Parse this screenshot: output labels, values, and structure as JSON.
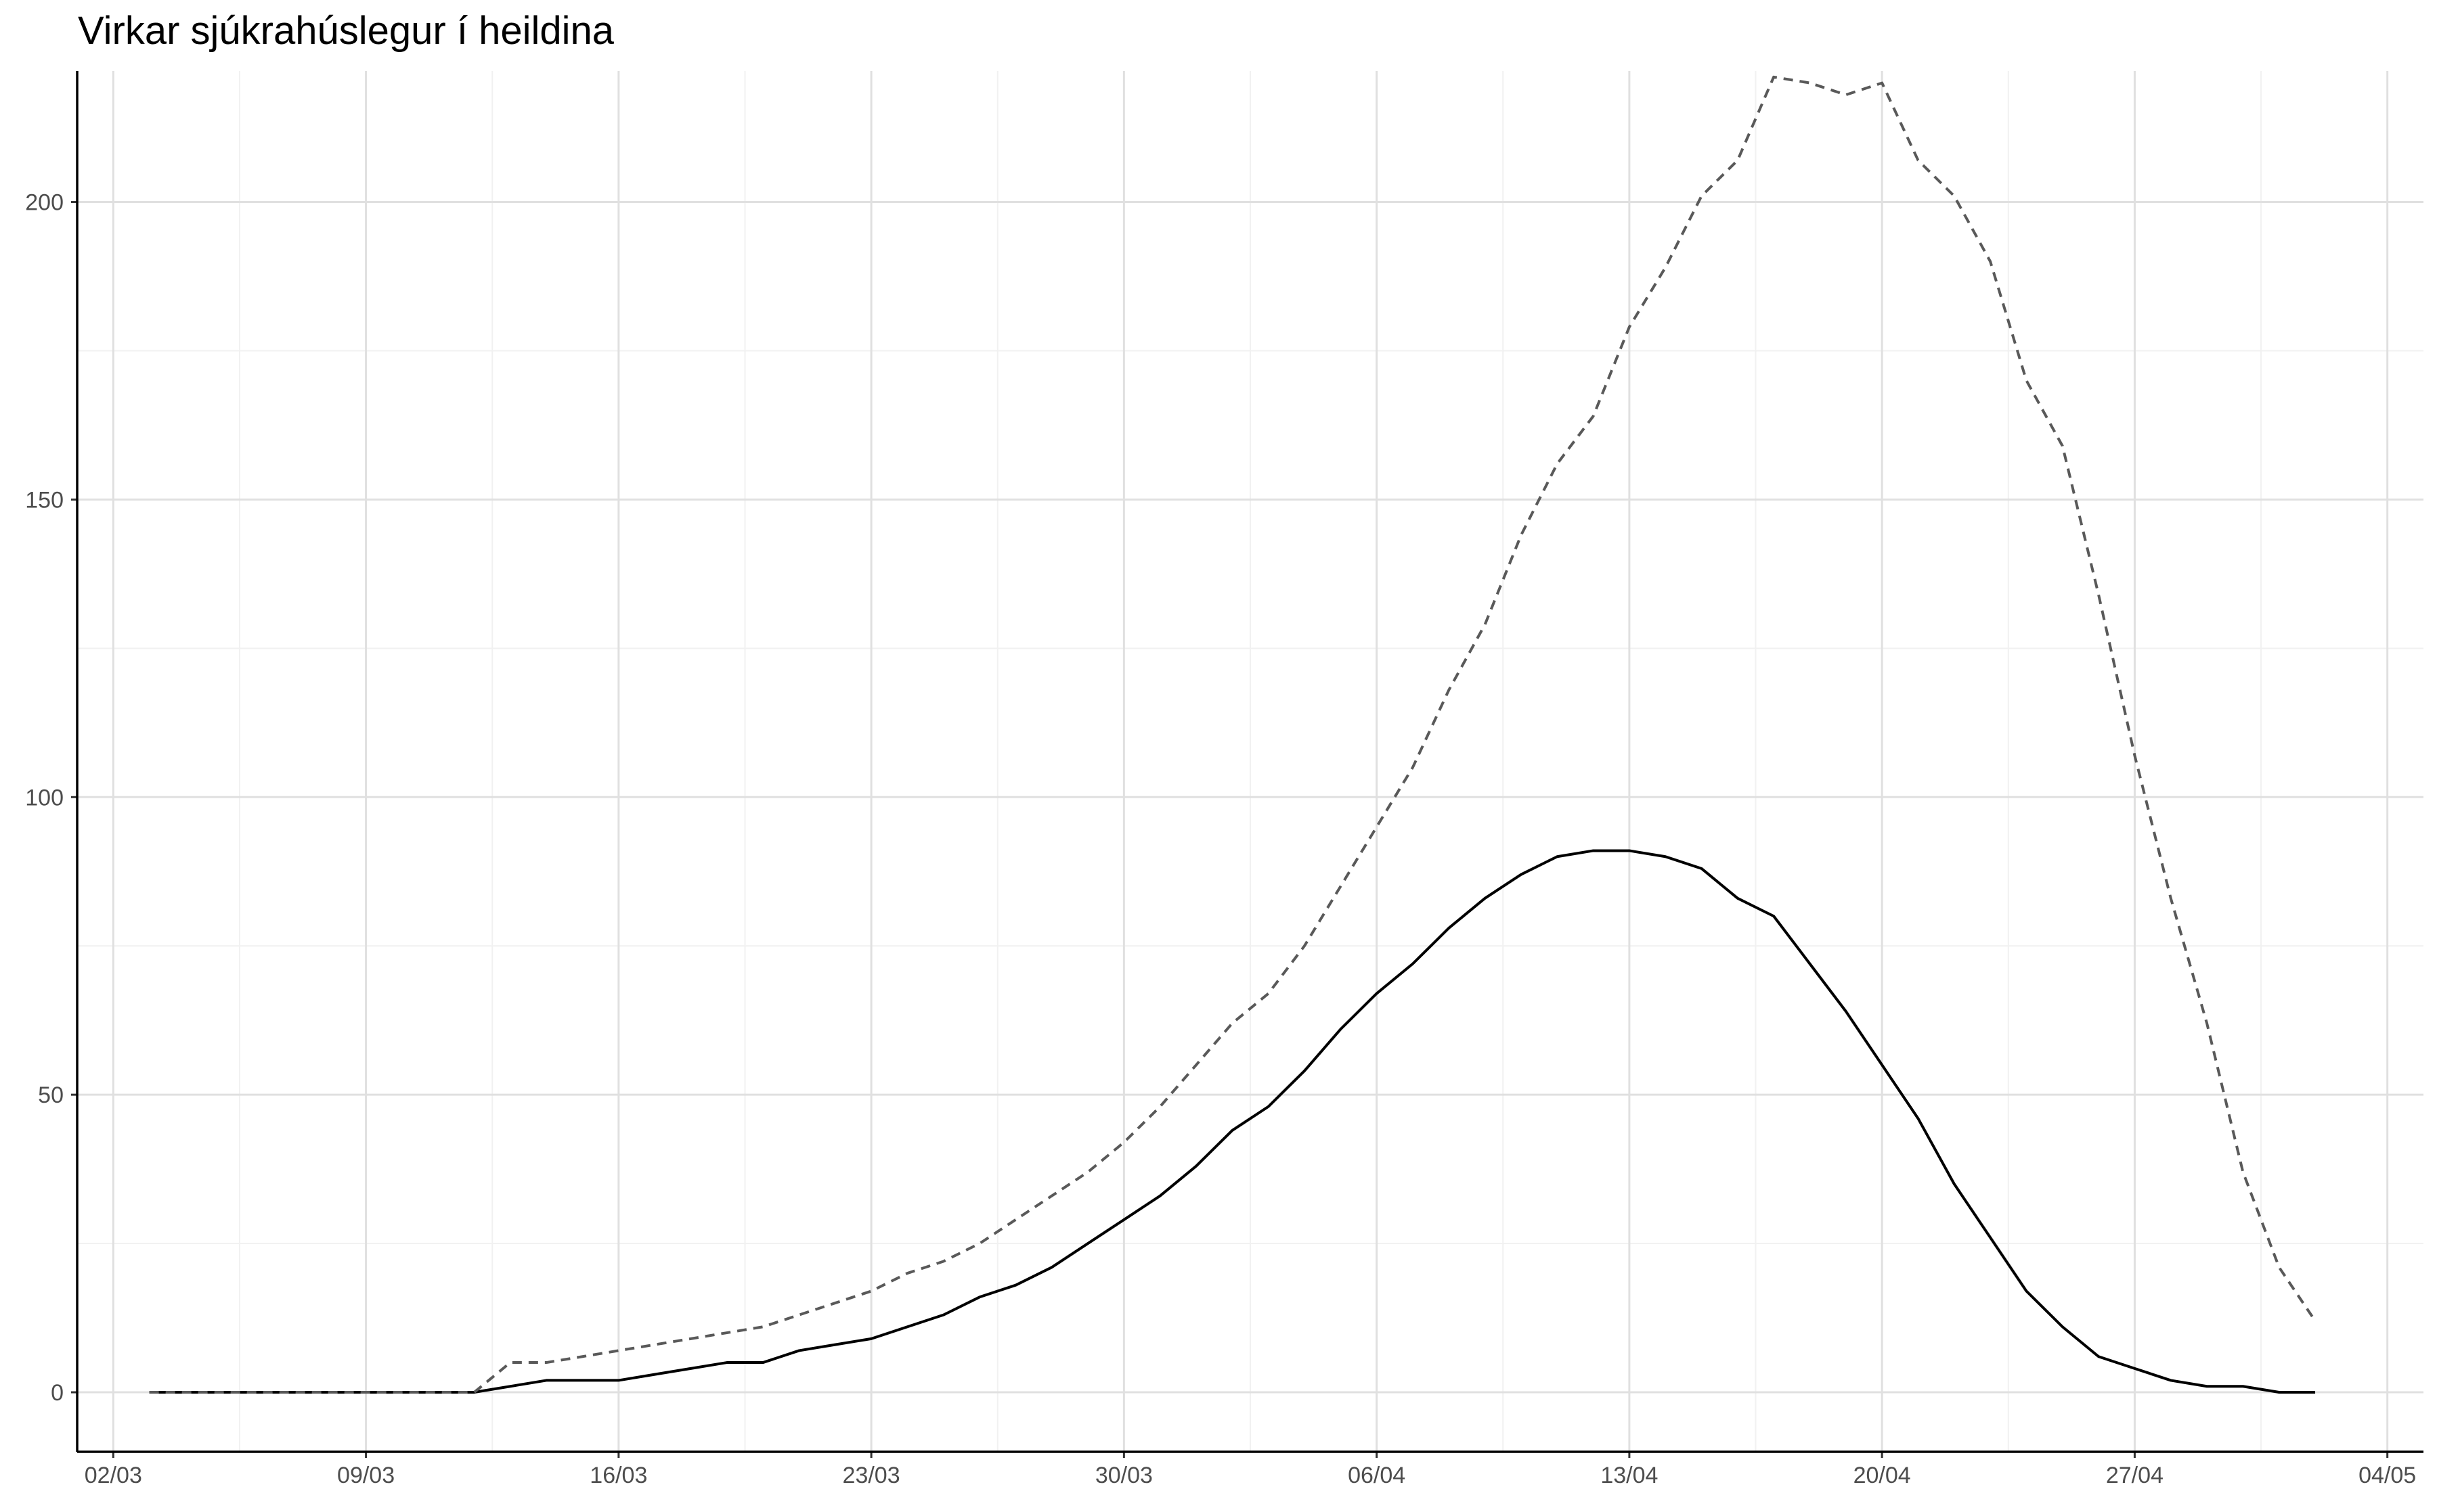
{
  "chart_data": {
    "type": "line",
    "title": "Virkar sjúkrahúslegur í heildina",
    "xlabel": "",
    "ylabel": "",
    "x_start": "2020-03-03",
    "x_end": "2020-05-02",
    "xlim": [
      "2020-03-01",
      "2020-05-05"
    ],
    "ylim": [
      -10,
      222
    ],
    "y_ticks": [
      0,
      50,
      100,
      150,
      200
    ],
    "x_ticks": [
      {
        "date": "2020-03-02",
        "label": "02/03"
      },
      {
        "date": "2020-03-09",
        "label": "09/03"
      },
      {
        "date": "2020-03-16",
        "label": "16/03"
      },
      {
        "date": "2020-03-23",
        "label": "23/03"
      },
      {
        "date": "2020-03-30",
        "label": "30/03"
      },
      {
        "date": "2020-04-06",
        "label": "06/04"
      },
      {
        "date": "2020-04-13",
        "label": "13/04"
      },
      {
        "date": "2020-04-20",
        "label": "20/04"
      },
      {
        "date": "2020-04-27",
        "label": "27/04"
      },
      {
        "date": "2020-05-04",
        "label": "04/05"
      }
    ],
    "grid": true,
    "legend": "none",
    "series": [
      {
        "style": "solid",
        "color": "#000000",
        "values": [
          0,
          0,
          0,
          0,
          0,
          0,
          0,
          0,
          0,
          0,
          1,
          2,
          2,
          2,
          3,
          4,
          5,
          5,
          7,
          8,
          9,
          11,
          13,
          16,
          18,
          21,
          25,
          29,
          33,
          38,
          44,
          48,
          54,
          61,
          67,
          72,
          78,
          83,
          87,
          90,
          91,
          91,
          90,
          88,
          83,
          80,
          72,
          64,
          55,
          46,
          35,
          26,
          17,
          11,
          6,
          4,
          2,
          1,
          1,
          0,
          0
        ]
      },
      {
        "style": "dashed",
        "color": "#595959",
        "values": [
          0,
          0,
          0,
          0,
          0,
          0,
          0,
          0,
          0,
          0,
          5,
          5,
          6,
          7,
          8,
          9,
          10,
          11,
          13,
          15,
          17,
          20,
          22,
          25,
          29,
          33,
          37,
          42,
          48,
          55,
          62,
          67,
          75,
          85,
          95,
          105,
          118,
          129,
          144,
          156,
          164,
          179,
          189,
          201,
          207,
          221,
          220,
          218,
          220,
          207,
          201,
          190,
          170,
          159,
          134,
          107,
          83,
          62,
          37,
          21,
          12
        ]
      }
    ]
  }
}
